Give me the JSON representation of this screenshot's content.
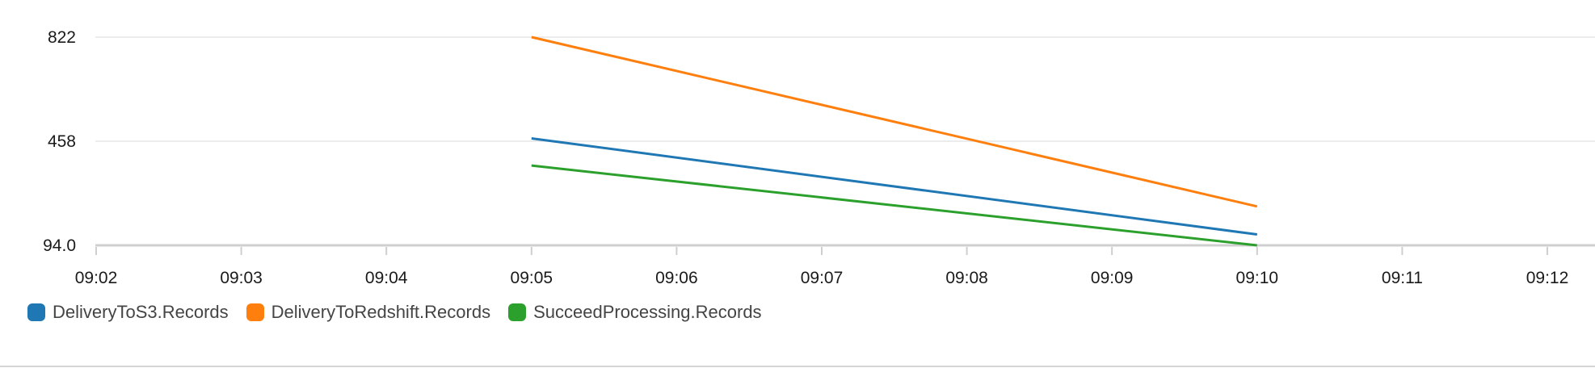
{
  "chart_data": {
    "type": "line",
    "x": [
      "09:02",
      "09:03",
      "09:04",
      "09:05",
      "09:06",
      "09:07",
      "09:08",
      "09:09",
      "09:10",
      "09:11",
      "09:12"
    ],
    "y_ticks": [
      "822",
      "458",
      "94.0"
    ],
    "y_tick_values": [
      822,
      458,
      94
    ],
    "ylim": [
      94,
      822
    ],
    "grid": "horizontal",
    "legend_position": "bottom-left",
    "series": [
      {
        "name": "DeliveryToS3.Records",
        "color": "#1f77b4",
        "points": [
          [
            "09:05",
            468
          ],
          [
            "09:10",
            132
          ]
        ]
      },
      {
        "name": "DeliveryToRedshift.Records",
        "color": "#ff7f0e",
        "points": [
          [
            "09:05",
            822
          ],
          [
            "09:10",
            230
          ]
        ]
      },
      {
        "name": "SucceedProcessing.Records",
        "color": "#2ca02c",
        "points": [
          [
            "09:05",
            373
          ],
          [
            "09:10",
            94
          ]
        ]
      }
    ]
  }
}
